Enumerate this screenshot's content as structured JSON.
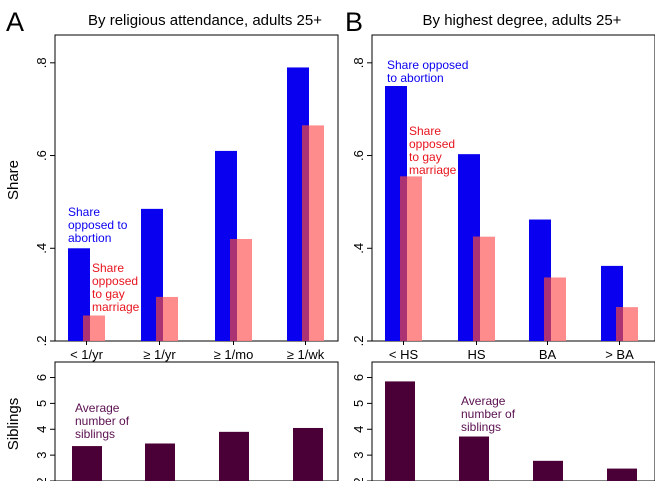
{
  "colors": {
    "abortion": "#0a00f0",
    "gay": "#ff7f7f",
    "overlap": "#a0286e",
    "siblings": "#4a0036",
    "annot_siblings": "#5a1050"
  },
  "chart_data": [
    {
      "id": "A-top",
      "panel_letter": "A",
      "type": "bar",
      "title": "By religious attendance, adults 25+",
      "ylabel": "Share",
      "ylim": [
        0.2,
        0.86
      ],
      "yticks": [
        0.2,
        0.4,
        0.6,
        0.8
      ],
      "ytick_labels": [
        ".2",
        ".4",
        ".6",
        ".8"
      ],
      "categories": [
        "< 1/yr",
        "≥ 1/yr",
        "≥ 1/mo",
        "≥ 1/wk"
      ],
      "series": [
        {
          "values": [
            0.4,
            0.485,
            0.61,
            0.79
          ]
        },
        {
          "values": [
            0.255,
            0.295,
            0.42,
            0.665
          ]
        }
      ],
      "annotations": [
        {
          "lines": [
            "Share",
            "opposed to",
            "abortion"
          ]
        },
        {
          "lines": [
            "Share",
            "opposed",
            "to gay",
            "marriage"
          ]
        }
      ]
    },
    {
      "id": "B-top",
      "panel_letter": "B",
      "type": "bar",
      "title": "By highest degree, adults 25+",
      "ylabel": "",
      "ylim": [
        0.2,
        0.86
      ],
      "yticks": [
        0.2,
        0.4,
        0.6,
        0.8
      ],
      "ytick_labels": [
        ".2",
        ".4",
        ".6",
        ".8"
      ],
      "categories": [
        "< HS",
        "HS",
        "BA",
        "> BA"
      ],
      "series": [
        {
          "values": [
            0.75,
            0.603,
            0.462,
            0.362
          ]
        },
        {
          "values": [
            0.555,
            0.425,
            0.337,
            0.273
          ]
        }
      ],
      "annotations": [
        {
          "lines": [
            "Share opposed",
            "to abortion"
          ]
        },
        {
          "lines": [
            "Share",
            "opposed",
            "to gay",
            "marriage"
          ]
        }
      ]
    },
    {
      "id": "A-bottom",
      "type": "bar",
      "ylabel": "Siblings",
      "ylim": [
        2,
        6.6
      ],
      "yticks": [
        2,
        3,
        4,
        5,
        6
      ],
      "ytick_labels": [
        "2",
        "3",
        "4",
        "5",
        "6"
      ],
      "categories": [
        "< 1/yr",
        "≥ 1/yr",
        "≥ 1/mo",
        "≥ 1/wk"
      ],
      "series": [
        {
          "values": [
            3.35,
            3.45,
            3.9,
            4.05
          ]
        }
      ],
      "annotations": [
        {
          "lines": [
            "Average",
            "number of",
            "siblings"
          ]
        }
      ]
    },
    {
      "id": "B-bottom",
      "type": "bar",
      "ylabel": "",
      "ylim": [
        2,
        6.6
      ],
      "yticks": [
        2,
        3,
        4,
        5,
        6
      ],
      "ytick_labels": [
        "2",
        "3",
        "4",
        "5",
        "6"
      ],
      "categories": [
        "< HS",
        "HS",
        "BA",
        "> BA"
      ],
      "series": [
        {
          "values": [
            5.85,
            3.72,
            2.78,
            2.48
          ]
        }
      ],
      "annotations": [
        {
          "lines": [
            "Average",
            "number of",
            "siblings"
          ]
        }
      ]
    }
  ]
}
